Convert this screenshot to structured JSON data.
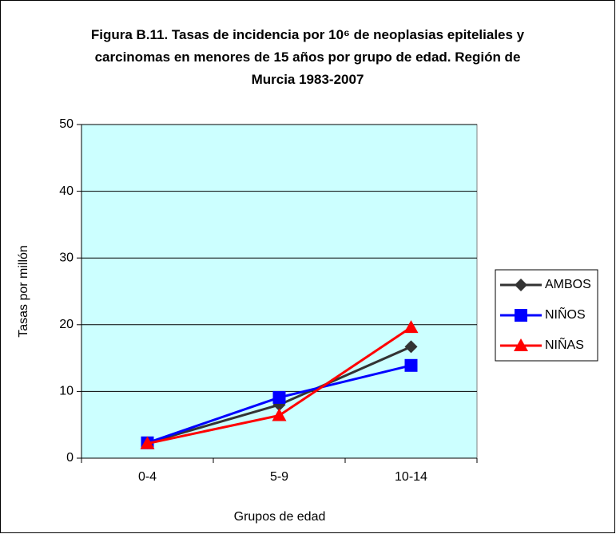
{
  "chart_data": {
    "type": "line",
    "title": "Figura B.11. Tasas de incidencia por 10⁶ de neoplasias epiteliales y carcinomas en menores de 15 años por grupo de edad. Región de Murcia 1983-2007",
    "x_label": "Grupos de edad",
    "y_label": "Tasas por millón",
    "categories": [
      "0-4",
      "5-9",
      "10-14"
    ],
    "series": [
      {
        "name": "AMBOS",
        "color": "#333333",
        "marker": "diamond",
        "values": [
          2.3,
          8.0,
          16.7
        ]
      },
      {
        "name": "NIÑOS",
        "color": "#0000ff",
        "marker": "square",
        "values": [
          2.3,
          9.1,
          13.9
        ]
      },
      {
        "name": "NIÑAS",
        "color": "#ff0000",
        "marker": "triangle",
        "values": [
          2.2,
          6.4,
          19.6
        ]
      }
    ],
    "ylim": [
      0,
      50
    ],
    "yticks": [
      0,
      10,
      20,
      30,
      40,
      50
    ],
    "grid": true,
    "plot_background": "#ccffff",
    "legend": "right"
  }
}
